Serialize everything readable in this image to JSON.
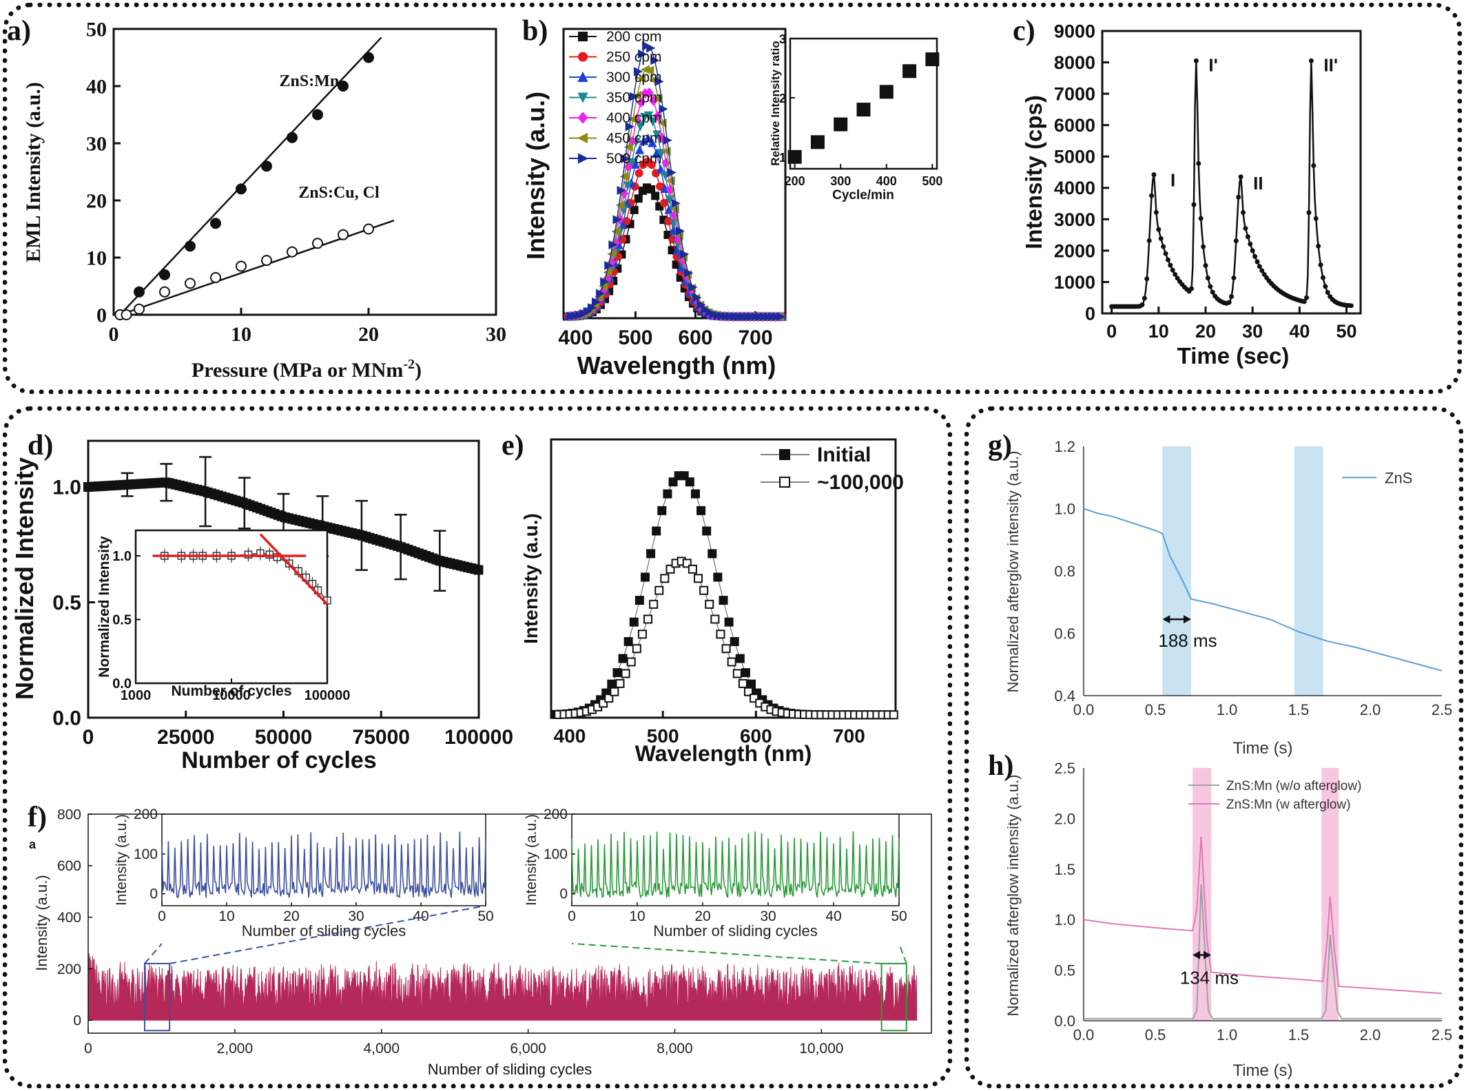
{
  "panel_labels": {
    "a": "a)",
    "b": "b)",
    "c": "c)",
    "d": "d)",
    "e": "e)",
    "f": "f)",
    "f_extra": "a",
    "g": "g)",
    "h": "h)"
  },
  "colors": {
    "black": "#111111",
    "red": "#e41a1c",
    "blue": "#1f3fd9",
    "teal": "#1a8a8a",
    "magenta": "#f020f0",
    "olive": "#8c8a10",
    "navy": "#1a2a9a",
    "crimson": "#b5295a",
    "slate_blue": "#3d4fa0",
    "green": "#2a9a3a",
    "sky": "#5b9fd1",
    "light_blue_band": "#c9e3f3",
    "pink": "#e07ab5",
    "pink_band": "#f6c7df",
    "grey": "#a0a0a0"
  },
  "chart_data": [
    {
      "id": "a",
      "type": "line",
      "xlabel": "Pressure (MPa or MNm",
      "xlabel_sup": "-2",
      "xlabel_tail": ")",
      "ylabel": "EML Intensity (a.u.)",
      "xlim": [
        0,
        30
      ],
      "ylim": [
        0,
        50
      ],
      "xticks": [
        0,
        10,
        20,
        30
      ],
      "yticks": [
        0,
        10,
        20,
        30,
        40,
        50
      ],
      "series": [
        {
          "name": "ZnS:Mn",
          "marker": "filled-circle",
          "x": [
            0.5,
            2,
            4,
            6,
            8,
            10,
            12,
            14,
            16,
            18,
            20
          ],
          "y": [
            0,
            4,
            7,
            12,
            16,
            22,
            26,
            31,
            35,
            40,
            45
          ],
          "fit_x": [
            0.5,
            21
          ],
          "fit_y": [
            0,
            48.5
          ]
        },
        {
          "name": "ZnS:Cu, Cl",
          "marker": "open-circle",
          "x": [
            0.5,
            1,
            2,
            4,
            6,
            8,
            10,
            12,
            14,
            16,
            18,
            20
          ],
          "y": [
            0,
            0,
            1,
            4,
            5.5,
            6.5,
            8.5,
            9.5,
            11,
            12.5,
            14,
            15
          ],
          "fit_x": [
            0.5,
            22
          ],
          "fit_y": [
            0,
            16.5
          ]
        }
      ]
    },
    {
      "id": "b",
      "type": "line",
      "xlabel": "Wavelength (nm)",
      "ylabel": "Intensity (a.u.)",
      "xlim": [
        380,
        750
      ],
      "xticks": [
        400,
        500,
        600,
        700
      ],
      "peak_wavelength": 520,
      "width_nm": 45,
      "series": [
        {
          "name": "200 cpm",
          "peak": 0.5,
          "marker": "square"
        },
        {
          "name": "250 cpm",
          "peak": 0.6,
          "marker": "circle"
        },
        {
          "name": "300 cpm",
          "peak": 0.69,
          "marker": "triangle-up"
        },
        {
          "name": "350 cpm",
          "peak": 0.78,
          "marker": "triangle-down"
        },
        {
          "name": "400 cpm",
          "peak": 0.87,
          "marker": "diamond"
        },
        {
          "name": "450 cpm",
          "peak": 0.96,
          "marker": "triangle-left"
        },
        {
          "name": "500 cpm",
          "peak": 1.05,
          "marker": "triangle-right"
        }
      ],
      "inset": {
        "type": "scatter",
        "xlabel": "Cycle/min",
        "ylabel": "Relative Intensity ratio",
        "xlim": [
          190,
          510
        ],
        "ylim": [
          0.8,
          3
        ],
        "xticks": [
          200,
          300,
          400,
          500
        ],
        "yticks": [
          1,
          2,
          3
        ],
        "x": [
          200,
          250,
          300,
          350,
          400,
          450,
          500
        ],
        "y": [
          1,
          1.25,
          1.55,
          1.8,
          2.1,
          2.45,
          2.65
        ]
      }
    },
    {
      "id": "c",
      "type": "line",
      "xlabel": "Time (sec)",
      "ylabel": "Intensity (cps)",
      "xlim": [
        -2,
        53
      ],
      "ylim": [
        0,
        9000
      ],
      "xticks": [
        0,
        10,
        20,
        30,
        40,
        50
      ],
      "yticks": [
        0,
        1000,
        2000,
        3000,
        4000,
        5000,
        6000,
        7000,
        8000,
        9000
      ],
      "peaks": [
        {
          "label": "I",
          "x": 9,
          "y": 4400
        },
        {
          "label": "I'",
          "x": 18,
          "y": 8000
        },
        {
          "label": "II",
          "x": 27.5,
          "y": 4300
        },
        {
          "label": "II'",
          "x": 42.5,
          "y": 8000
        }
      ]
    },
    {
      "id": "d",
      "type": "line",
      "xlabel": "Number of cycles",
      "ylabel": "Normalized Intensity",
      "xlim": [
        0,
        100000
      ],
      "ylim": [
        0,
        1.2
      ],
      "xticks": [
        0,
        25000,
        50000,
        75000,
        100000
      ],
      "yticks": [
        0.0,
        0.5,
        1.0
      ],
      "xtick_labels": [
        "0",
        "25000",
        "50000",
        "75000",
        "100000"
      ],
      "ytick_labels": [
        "0.0",
        "0.5",
        "1.0"
      ],
      "x": [
        0,
        10000,
        20000,
        30000,
        40000,
        50000,
        60000,
        70000,
        80000,
        90000,
        100000
      ],
      "y": [
        1.0,
        1.01,
        1.02,
        0.98,
        0.93,
        0.87,
        0.83,
        0.79,
        0.74,
        0.68,
        0.64
      ],
      "error_x": [
        10000,
        20000,
        30000,
        40000,
        50000,
        60000,
        70000,
        80000,
        90000
      ],
      "error_y": [
        1.01,
        1.02,
        0.98,
        0.93,
        0.87,
        0.83,
        0.79,
        0.74,
        0.68
      ],
      "error_size": [
        0.05,
        0.08,
        0.15,
        0.11,
        0.1,
        0.13,
        0.15,
        0.14,
        0.13
      ],
      "inset": {
        "type": "line",
        "xlabel": "Number of cycles",
        "ylabel": "Normalized Intensity",
        "log_x": true,
        "xlim": [
          1000,
          100000
        ],
        "ylim": [
          0,
          1.2
        ],
        "xticks": [
          1000,
          10000,
          100000
        ],
        "yticks": [
          0.0,
          0.5,
          1.0
        ],
        "xtick_labels": [
          "1000",
          "10000",
          "100000"
        ],
        "ytick_labels": [
          "0.0",
          "0.5",
          "1.0"
        ],
        "x": [
          2000,
          3000,
          4000,
          5000,
          7000,
          10000,
          15000,
          20000,
          25000,
          30000,
          40000,
          50000,
          60000,
          70000,
          80000,
          100000
        ],
        "y": [
          1.0,
          1.0,
          1.0,
          1.0,
          1.0,
          1.0,
          1.01,
          1.02,
          1.01,
          0.99,
          0.94,
          0.88,
          0.83,
          0.78,
          0.73,
          0.65
        ]
      }
    },
    {
      "id": "e",
      "type": "scatter",
      "xlabel": "Wavelength (nm)",
      "ylabel": "Intensity (a.u.)",
      "xlim": [
        380,
        750
      ],
      "xticks": [
        400,
        500,
        600,
        700
      ],
      "series": [
        {
          "name": "Initial",
          "marker": "filled-square",
          "peak": 1.0,
          "center": 520,
          "width": 37
        },
        {
          "name": "~100,000",
          "marker": "open-square",
          "peak": 0.64,
          "center": 520,
          "width": 37
        }
      ]
    },
    {
      "id": "f",
      "type": "area",
      "xlabel": "Number of sliding cycles",
      "ylabel": "Intensity (a.u.)",
      "xlim": [
        0,
        11500
      ],
      "ylim": [
        -50,
        800
      ],
      "xticks": [
        0,
        2000,
        4000,
        6000,
        8000,
        10000
      ],
      "xtick_labels": [
        "0",
        "2,000",
        "4,000",
        "6,000",
        "8,000",
        "10,000"
      ],
      "yticks": [
        0,
        200,
        400,
        600,
        800
      ],
      "mean": 120,
      "noise": 110,
      "insets": [
        {
          "xlabel": "Number of sliding cycles",
          "ylabel": "Intensity (a.u.)",
          "xlim": [
            0,
            50
          ],
          "ylim": [
            -30,
            200
          ],
          "xticks": [
            0,
            10,
            20,
            30,
            40,
            50
          ],
          "yticks": [
            0,
            100,
            200
          ],
          "cycles": 50,
          "peak": 150,
          "window": [
            900,
            1000
          ]
        },
        {
          "xlabel": "Number of sliding cycles",
          "ylabel": "Intensity (a.u.)",
          "xlim": [
            0,
            50
          ],
          "ylim": [
            -30,
            200
          ],
          "xticks": [
            0,
            10,
            20,
            30,
            40,
            50
          ],
          "yticks": [
            0,
            100,
            200
          ],
          "cycles": 50,
          "peak": 150,
          "window": [
            10950,
            11050
          ]
        }
      ]
    },
    {
      "id": "g",
      "type": "line",
      "xlabel": "Time (s)",
      "ylabel": "Normalized afterglow intensity (a.u.)",
      "xlim": [
        0,
        2.5
      ],
      "ylim": [
        0.4,
        1.2
      ],
      "xticks": [
        0,
        0.5,
        1,
        1.5,
        2,
        2.5
      ],
      "xtick_labels": [
        "0.0",
        "0.5",
        "1.0",
        "1.5",
        "2.0",
        "2.5"
      ],
      "yticks": [
        0.4,
        0.6,
        0.8,
        1.0,
        1.2
      ],
      "ytick_labels": [
        "0.4",
        "0.6",
        "0.8",
        "1.0",
        "1.2"
      ],
      "bands": [
        [
          0.55,
          0.75
        ],
        [
          1.47,
          1.67
        ]
      ],
      "annotation": "188 ms",
      "series": [
        {
          "name": "ZnS",
          "x": [
            0,
            0.1,
            0.2,
            0.3,
            0.4,
            0.5,
            0.55,
            0.6,
            0.7,
            0.75,
            0.9,
            1.1,
            1.3,
            1.5,
            1.7,
            1.9,
            2.1,
            2.3,
            2.5
          ],
          "y": [
            1.0,
            0.985,
            0.975,
            0.96,
            0.945,
            0.93,
            0.92,
            0.85,
            0.76,
            0.71,
            0.695,
            0.67,
            0.645,
            0.605,
            0.575,
            0.555,
            0.53,
            0.505,
            0.48
          ]
        }
      ]
    },
    {
      "id": "h",
      "type": "line",
      "xlabel": "Time (s)",
      "ylabel": "Normalized afterglow intensity (a.u.)",
      "xlim": [
        0,
        2.5
      ],
      "ylim": [
        0,
        2.5
      ],
      "xticks": [
        0,
        0.5,
        1,
        1.5,
        2,
        2.5
      ],
      "xtick_labels": [
        "0.0",
        "0.5",
        "1.0",
        "1.5",
        "2.0",
        "2.5"
      ],
      "yticks": [
        0,
        0.5,
        1,
        1.5,
        2,
        2.5
      ],
      "ytick_labels": [
        "0.0",
        "0.5",
        "1.0",
        "1.5",
        "2.0",
        "2.5"
      ],
      "bands": [
        [
          0.76,
          0.89
        ],
        [
          1.66,
          1.78
        ]
      ],
      "annotation": "134 ms",
      "series": [
        {
          "name": "ZnS:Mn (w/o afterglow)",
          "x": [
            0,
            0.76,
            0.79,
            0.82,
            0.87,
            0.9,
            1.66,
            1.69,
            1.72,
            1.77,
            1.8,
            2.5
          ],
          "y": [
            0.02,
            0.02,
            0.1,
            1.35,
            0.1,
            0.02,
            0.02,
            0.1,
            0.85,
            0.1,
            0.02,
            0.02
          ]
        },
        {
          "name": "ZnS:Mn (w afterglow)",
          "x": [
            0,
            0.2,
            0.5,
            0.76,
            0.79,
            0.82,
            0.86,
            0.89,
            1.2,
            1.5,
            1.67,
            1.7,
            1.72,
            1.75,
            1.78,
            2.0,
            2.5
          ],
          "y": [
            1.0,
            0.96,
            0.92,
            0.89,
            1.1,
            1.82,
            0.8,
            0.48,
            0.44,
            0.41,
            0.39,
            0.8,
            1.23,
            0.7,
            0.34,
            0.32,
            0.27
          ]
        }
      ]
    }
  ]
}
